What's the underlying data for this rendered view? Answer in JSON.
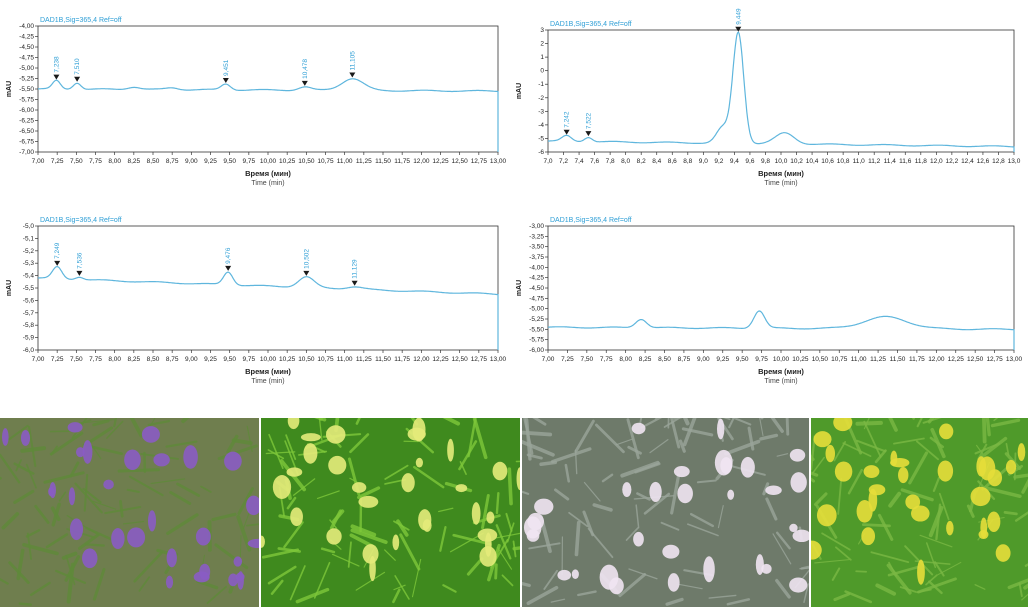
{
  "chart_data": [
    {
      "type": "line",
      "signal_label": "DAD1B,Sig=365,4  Ref=off",
      "ylabel": "mAU",
      "xlabel": "Время (мин)",
      "xlabel_sub": "Time (min)",
      "xlim": [
        7.0,
        13.0
      ],
      "ylim": [
        -7.0,
        -4.0
      ],
      "x_ticks": [
        "7,00",
        "7,25",
        "7,50",
        "7,75",
        "8,00",
        "8,25",
        "8,50",
        "8,75",
        "9,00",
        "9,25",
        "9,50",
        "9,75",
        "10,00",
        "10,25",
        "10,50",
        "10,75",
        "11,00",
        "11,25",
        "11,50",
        "11,75",
        "12,00",
        "12,25",
        "12,50",
        "12,75",
        "13,00"
      ],
      "y_ticks": [
        "-4,00",
        "-4,25",
        "-4,50",
        "-4,75",
        "-5,00",
        "-5,25",
        "-5,50",
        "-5,75",
        "-6,00",
        "-6,25",
        "-6,50",
        "-6,75",
        "-7,00"
      ],
      "baseline": [
        -5.5,
        -5.55
      ],
      "peaks": [
        {
          "label": "7,238",
          "x": 7.24,
          "y": -5.3,
          "w": 0.05
        },
        {
          "label": "7,510",
          "x": 7.51,
          "y": -5.35,
          "w": 0.05
        },
        {
          "x": 8.25,
          "y": -5.45,
          "w": 0.08
        },
        {
          "x": 8.75,
          "y": -5.47,
          "w": 0.08
        },
        {
          "label": "9,451",
          "x": 9.45,
          "y": -5.38,
          "w": 0.06
        },
        {
          "label": "10,478",
          "x": 10.48,
          "y": -5.45,
          "w": 0.08
        },
        {
          "label": "11,105",
          "x": 11.1,
          "y": -5.25,
          "w": 0.14
        }
      ],
      "grid": false
    },
    {
      "type": "line",
      "signal_label": "DAD1B,Sig=365,4  Ref=off",
      "ylabel": "mAU",
      "xlabel": "Время (мин)",
      "xlabel_sub": "Time (min)",
      "xlim": [
        7.0,
        13.0
      ],
      "ylim": [
        -6,
        3
      ],
      "x_ticks": [
        "7,0",
        "7,2",
        "7,4",
        "7,6",
        "7,8",
        "8,0",
        "8,2",
        "8,4",
        "8,6",
        "8,8",
        "9,0",
        "9,2",
        "9,4",
        "9,6",
        "9,8",
        "10,0",
        "10,2",
        "10,4",
        "10,6",
        "10,8",
        "11,0",
        "11,2",
        "11,4",
        "11,6",
        "11,8",
        "12,0",
        "12,2",
        "12,4",
        "12,6",
        "12,8",
        "13,0"
      ],
      "y_ticks": [
        "3",
        "2",
        "1",
        "0",
        "-1",
        "-2",
        "-3",
        "-4",
        "-5",
        "-6"
      ],
      "baseline": [
        -5.2,
        -5.6
      ],
      "peaks": [
        {
          "label": "7,242",
          "x": 7.24,
          "y": -4.8,
          "w": 0.06
        },
        {
          "label": "7,522",
          "x": 7.52,
          "y": -4.9,
          "w": 0.05
        },
        {
          "x": 9.25,
          "y": -4.2,
          "w": 0.08
        },
        {
          "label": "9,449",
          "x": 9.45,
          "y": 2.8,
          "w": 0.07
        },
        {
          "x": 10.05,
          "y": -4.6,
          "w": 0.12
        }
      ],
      "grid": false
    },
    {
      "type": "line",
      "signal_label": "DAD1B,Sig=365,4  Ref=off",
      "ylabel": "mAU",
      "xlabel": "Время (мин)",
      "xlabel_sub": "Time (min)",
      "xlim": [
        7.0,
        13.0
      ],
      "ylim": [
        -6.0,
        -5.0
      ],
      "x_ticks": [
        "7,00",
        "7,25",
        "7,50",
        "7,75",
        "8,00",
        "8,25",
        "8,50",
        "8,75",
        "9,00",
        "9,25",
        "9,50",
        "9,75",
        "10,00",
        "10,25",
        "10,50",
        "10,75",
        "11,00",
        "11,25",
        "11,50",
        "11,75",
        "12,00",
        "12,25",
        "12,50",
        "12,75",
        "13,00"
      ],
      "y_ticks": [
        "-5,0",
        "-5,1",
        "-5,2",
        "-5,3",
        "-5,4",
        "-5,5",
        "-5,6",
        "-5,7",
        "-5,8",
        "-5,9",
        "-6,0"
      ],
      "baseline": [
        -5.42,
        -5.55
      ],
      "peaks": [
        {
          "label": "7,249",
          "x": 7.25,
          "y": -5.33,
          "w": 0.06
        },
        {
          "label": "7,536",
          "x": 7.54,
          "y": -5.41,
          "w": 0.05
        },
        {
          "x": 9.3,
          "y": -5.47,
          "w": 0.08
        },
        {
          "label": "9,476",
          "x": 9.48,
          "y": -5.37,
          "w": 0.06
        },
        {
          "label": "10,502",
          "x": 10.5,
          "y": -5.41,
          "w": 0.1
        },
        {
          "label": "11,129",
          "x": 11.13,
          "y": -5.49,
          "w": 0.1
        }
      ],
      "grid": false
    },
    {
      "type": "line",
      "signal_label": "DAD1B,Sig=365,4  Ref=off",
      "ylabel": "mAU",
      "xlabel": "Время (мин)",
      "xlabel_sub": "Time (min)",
      "xlim": [
        7.0,
        13.0
      ],
      "ylim": [
        -6.0,
        -3.0
      ],
      "x_ticks": [
        "7,00",
        "7,25",
        "7,50",
        "7,75",
        "8,00",
        "8,25",
        "8,50",
        "8,75",
        "9,00",
        "9,25",
        "9,50",
        "9,75",
        "10,00",
        "10,25",
        "10,50",
        "10,75",
        "11,00",
        "11,25",
        "11,50",
        "11,75",
        "12,00",
        "12,25",
        "12,50",
        "12,75",
        "13,00"
      ],
      "y_ticks": [
        "-3,00",
        "-3,25",
        "-3,50",
        "-3,75",
        "-4,00",
        "-4,25",
        "-4,50",
        "-4,75",
        "-5,00",
        "-5,25",
        "-5,50",
        "-5,75",
        "-6,00"
      ],
      "baseline": [
        -5.45,
        -5.5
      ],
      "peaks": [
        {
          "x": 8.2,
          "y": -5.25,
          "w": 0.07
        },
        {
          "x": 9.72,
          "y": -5.05,
          "w": 0.07
        },
        {
          "x": 11.35,
          "y": -5.2,
          "w": 0.28
        }
      ],
      "grid": false
    }
  ],
  "photos": [
    {
      "name": "photo-purple-flowering-plant",
      "bg": "#6f7e4e",
      "flower": "#8a5cc4",
      "leaf": "#5f8a3a"
    },
    {
      "name": "photo-yellow-green-flowering-plant",
      "bg": "#3f8a1e",
      "flower": "#e4eb7a",
      "leaf": "#7ec83a"
    },
    {
      "name": "photo-white-pink-flowering-plant",
      "bg": "#6e7a6a",
      "flower": "#efe4f2",
      "leaf": "#9aa59a"
    },
    {
      "name": "photo-yellow-flowering-plant",
      "bg": "#4f9a2a",
      "flower": "#e6de3a",
      "leaf": "#7ab844"
    }
  ],
  "colors": {
    "trace": "#5fb6dd",
    "axis": "#333333",
    "signal_label": "#2f9fd6",
    "marker": "#1a1a1a"
  }
}
